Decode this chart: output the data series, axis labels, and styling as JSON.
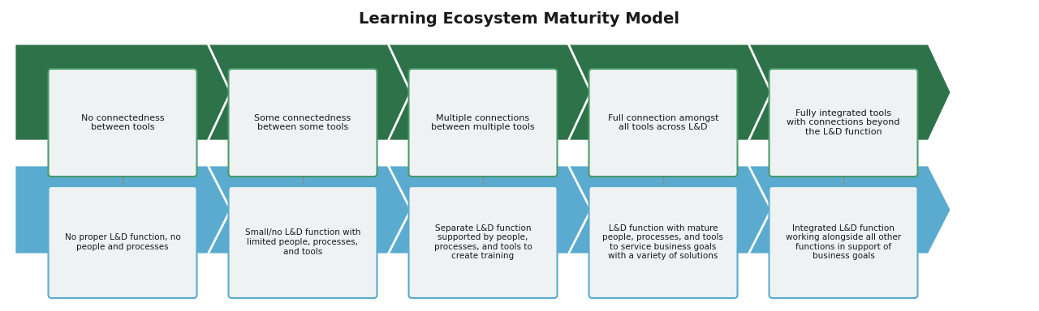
{
  "title": "Learning Ecosystem Maturity Model",
  "title_fontsize": 14,
  "background_color": "#ffffff",
  "green_color": "#2d7248",
  "blue_color": "#5aabcf",
  "box_bg_color": "#eef2f2",
  "box_border_color_green": "#4a9a6a",
  "box_border_color_blue": "#5aabcf",
  "text_color": "#1a1a1a",
  "top_labels": [
    "No connectedness\nbetween tools",
    "Some connectedness\nbetween some tools",
    "Multiple connections\nbetween multiple tools",
    "Full connection amongst\nall tools across L&D",
    "Fully integrated tools\nwith connections beyond\nthe L&D function"
  ],
  "bottom_labels": [
    "No proper L&D function, no\npeople and processes",
    "Small/no L&D function with\nlimited people, processes,\nand tools",
    "Separate L&D function\nsupported by people,\nprocesses, and tools to\ncreate training",
    "L&D function with mature\npeople, processes, and tools\nto service business goals\nwith a variety of solutions",
    "Integrated L&D function\nworking alongside all other\nfunctions in support of\nbusiness goals"
  ],
  "n_stages": 5
}
